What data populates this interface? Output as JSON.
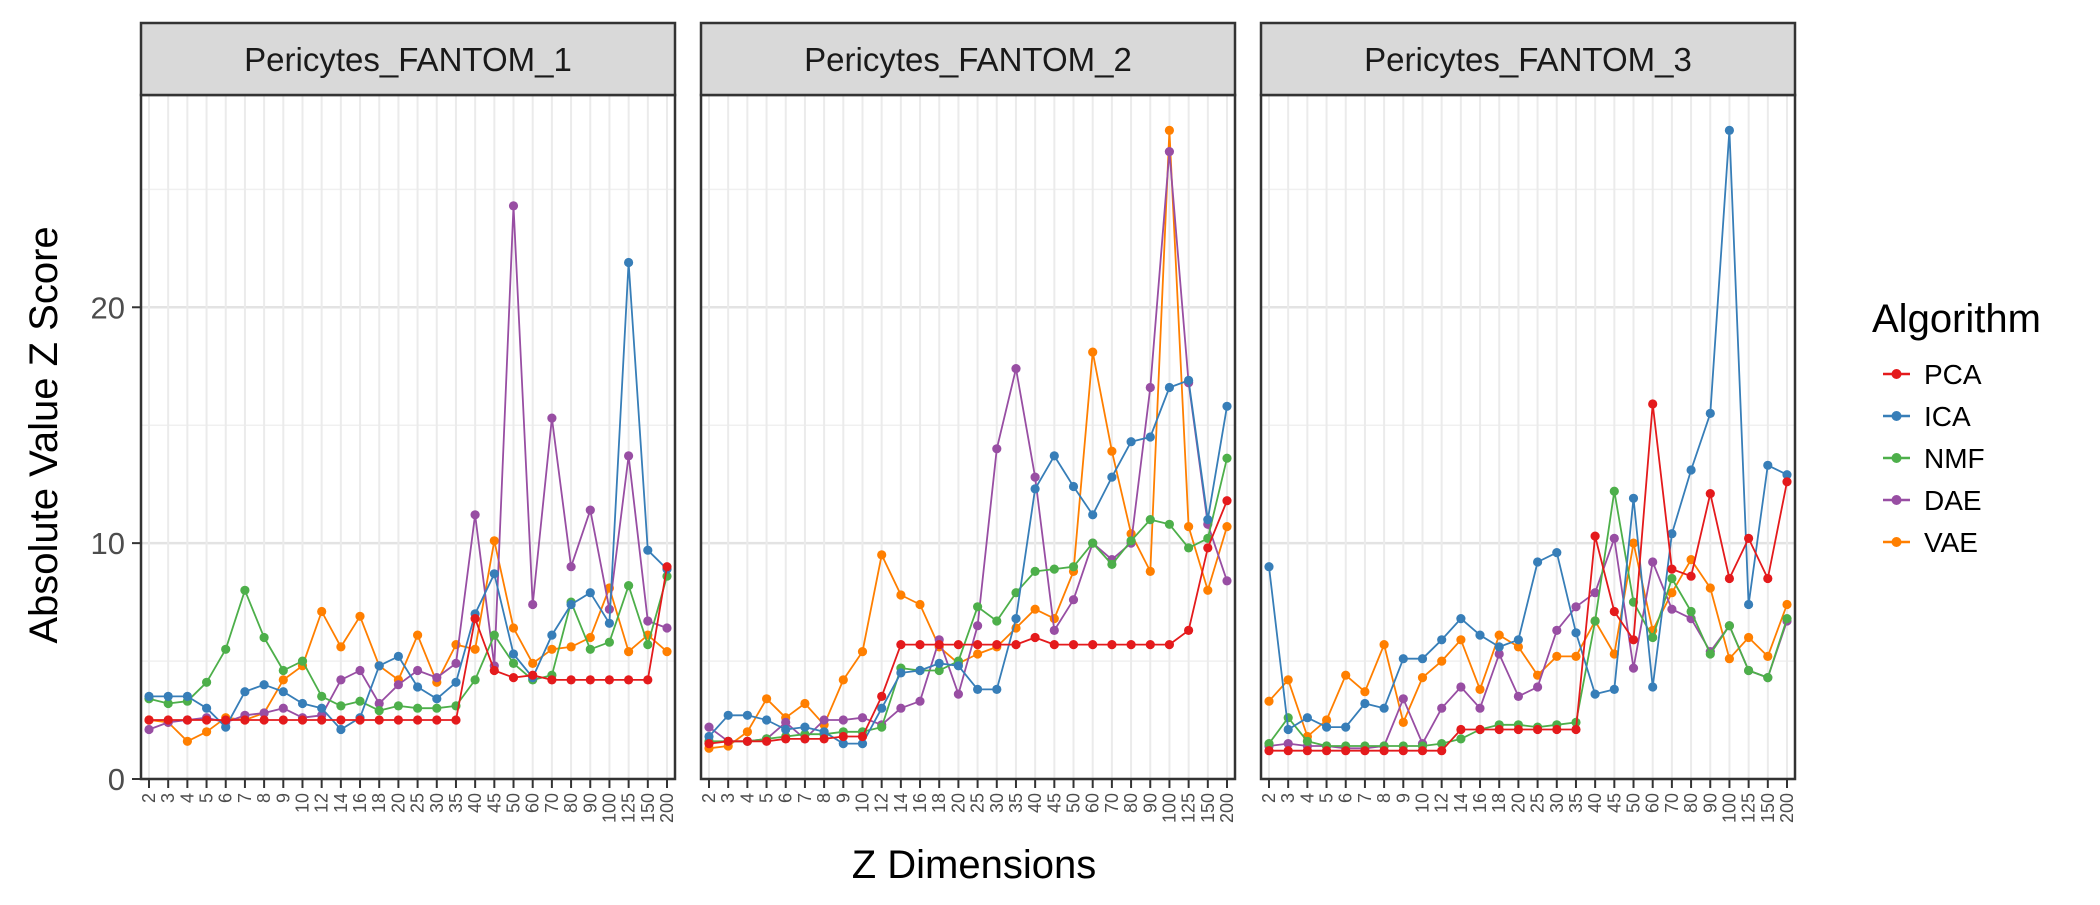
{
  "chart_data": {
    "type": "line",
    "xlabel": "Z Dimensions",
    "ylabel": "Absolute Value Z Score",
    "x": [
      "2",
      "3",
      "4",
      "5",
      "6",
      "7",
      "8",
      "9",
      "10",
      "12",
      "14",
      "16",
      "18",
      "20",
      "25",
      "30",
      "35",
      "40",
      "45",
      "50",
      "60",
      "70",
      "80",
      "90",
      "100",
      "125",
      "150",
      "200"
    ],
    "ylim": [
      0,
      29
    ],
    "yticks": [
      0,
      10,
      20
    ],
    "grid": true,
    "legend_title": "Algorithm",
    "legend_position": "right",
    "series_colors": {
      "PCA": "#E41A1C",
      "ICA": "#377EB8",
      "NMF": "#4DAF4A",
      "DAE": "#984EA3",
      "VAE": "#FF7F00"
    },
    "panels": [
      {
        "title": "Pericytes_FANTOM_1",
        "series": [
          {
            "name": "PCA",
            "values": [
              2.5,
              2.5,
              2.5,
              2.5,
              2.5,
              2.5,
              2.5,
              2.5,
              2.5,
              2.5,
              2.5,
              2.5,
              2.5,
              2.5,
              2.5,
              2.5,
              2.5,
              6.8,
              4.6,
              4.3,
              4.4,
              4.2,
              4.2,
              4.2,
              4.2,
              4.2,
              4.2,
              9.0
            ]
          },
          {
            "name": "ICA",
            "values": [
              3.5,
              3.5,
              3.5,
              3.0,
              2.2,
              3.7,
              4.0,
              3.7,
              3.2,
              3.0,
              2.1,
              2.6,
              4.8,
              5.2,
              3.9,
              3.4,
              4.1,
              7.0,
              8.7,
              5.3,
              4.3,
              6.1,
              7.4,
              7.9,
              6.6,
              21.9,
              9.7,
              8.9
            ]
          },
          {
            "name": "NMF",
            "values": [
              3.4,
              3.2,
              3.3,
              4.1,
              5.5,
              8.0,
              6.0,
              4.6,
              5.0,
              3.5,
              3.1,
              3.3,
              2.9,
              3.1,
              3.0,
              3.0,
              3.1,
              4.2,
              6.1,
              4.9,
              4.2,
              4.4,
              7.5,
              5.5,
              5.8,
              8.2,
              5.7,
              8.6
            ]
          },
          {
            "name": "DAE",
            "values": [
              2.1,
              2.4,
              2.5,
              2.6,
              2.4,
              2.7,
              2.8,
              3.0,
              2.6,
              2.7,
              4.2,
              4.6,
              3.2,
              4.0,
              4.6,
              4.3,
              4.9,
              11.2,
              4.8,
              24.3,
              7.4,
              15.3,
              9.0,
              11.4,
              7.2,
              13.7,
              6.7,
              6.4
            ]
          },
          {
            "name": "VAE",
            "values": [
              2.5,
              2.4,
              1.6,
              2.0,
              2.6,
              2.5,
              2.8,
              4.2,
              4.8,
              7.1,
              5.6,
              6.9,
              4.8,
              4.2,
              6.1,
              4.1,
              5.7,
              5.5,
              10.1,
              6.4,
              4.9,
              5.5,
              5.6,
              6.0,
              8.1,
              5.4,
              6.1,
              5.4
            ]
          }
        ]
      },
      {
        "title": "Pericytes_FANTOM_2",
        "series": [
          {
            "name": "PCA",
            "values": [
              1.5,
              1.6,
              1.6,
              1.6,
              1.7,
              1.7,
              1.7,
              1.8,
              1.8,
              3.5,
              5.7,
              5.7,
              5.7,
              5.7,
              5.7,
              5.7,
              5.7,
              6.0,
              5.7,
              5.7,
              5.7,
              5.7,
              5.7,
              5.7,
              5.7,
              6.3,
              9.8,
              11.8
            ]
          },
          {
            "name": "ICA",
            "values": [
              1.8,
              2.7,
              2.7,
              2.5,
              2.1,
              2.2,
              2.0,
              1.5,
              1.5,
              3.0,
              4.5,
              4.6,
              4.9,
              4.8,
              3.8,
              3.8,
              6.8,
              12.3,
              13.7,
              12.4,
              11.2,
              12.8,
              14.3,
              14.5,
              16.6,
              16.9,
              11.0,
              15.8
            ]
          },
          {
            "name": "NMF",
            "values": [
              1.6,
              1.6,
              1.6,
              1.7,
              1.8,
              1.9,
              1.9,
              2.0,
              2.0,
              2.2,
              4.7,
              4.6,
              4.6,
              5.0,
              7.3,
              6.7,
              7.9,
              8.8,
              8.9,
              9.0,
              10.0,
              9.1,
              10.1,
              11.0,
              10.8,
              9.8,
              10.2,
              13.6
            ]
          },
          {
            "name": "DAE",
            "values": [
              2.2,
              1.6,
              1.6,
              1.7,
              2.4,
              1.7,
              2.5,
              2.5,
              2.6,
              2.3,
              3.0,
              3.3,
              5.9,
              3.6,
              6.5,
              14.0,
              17.4,
              12.8,
              6.3,
              7.6,
              10.0,
              9.3,
              10.0,
              16.6,
              26.6,
              16.8,
              10.8,
              8.4
            ]
          },
          {
            "name": "VAE",
            "values": [
              1.3,
              1.4,
              2.0,
              3.4,
              2.6,
              3.2,
              2.3,
              4.2,
              5.4,
              9.5,
              7.8,
              7.4,
              5.6,
              4.9,
              5.3,
              5.6,
              6.4,
              7.2,
              6.8,
              8.8,
              18.1,
              13.9,
              10.4,
              8.8,
              27.5,
              10.7,
              8.0,
              10.7
            ]
          }
        ]
      },
      {
        "title": "Pericytes_FANTOM_3",
        "series": [
          {
            "name": "PCA",
            "values": [
              1.2,
              1.2,
              1.2,
              1.2,
              1.2,
              1.2,
              1.2,
              1.2,
              1.2,
              1.2,
              2.1,
              2.1,
              2.1,
              2.1,
              2.1,
              2.1,
              2.1,
              10.3,
              7.1,
              5.9,
              15.9,
              8.9,
              8.6,
              12.1,
              8.5,
              10.2,
              8.5,
              12.6
            ]
          },
          {
            "name": "ICA",
            "values": [
              9.0,
              2.1,
              2.6,
              2.2,
              2.2,
              3.2,
              3.0,
              5.1,
              5.1,
              5.9,
              6.8,
              6.1,
              5.6,
              5.9,
              9.2,
              9.6,
              6.2,
              3.6,
              3.8,
              11.9,
              3.9,
              10.4,
              13.1,
              15.5,
              27.5,
              7.4,
              13.3,
              12.9
            ]
          },
          {
            "name": "NMF",
            "values": [
              1.5,
              2.6,
              1.6,
              1.4,
              1.4,
              1.4,
              1.4,
              1.4,
              1.4,
              1.5,
              1.7,
              2.1,
              2.3,
              2.3,
              2.2,
              2.3,
              2.4,
              6.7,
              12.2,
              7.5,
              6.0,
              8.5,
              7.1,
              5.3,
              6.5,
              4.6,
              4.3,
              6.8
            ]
          },
          {
            "name": "DAE",
            "values": [
              1.4,
              1.5,
              1.4,
              1.4,
              1.3,
              1.3,
              1.4,
              3.4,
              1.5,
              3.0,
              3.9,
              3.0,
              5.3,
              3.5,
              3.9,
              6.3,
              7.3,
              7.9,
              10.2,
              4.7,
              9.2,
              7.2,
              6.8,
              5.4,
              6.5,
              4.6,
              4.3,
              6.7
            ]
          },
          {
            "name": "VAE",
            "values": [
              3.3,
              4.2,
              1.8,
              2.5,
              4.4,
              3.7,
              5.7,
              2.4,
              4.3,
              5.0,
              5.9,
              3.8,
              6.1,
              5.6,
              4.4,
              5.2,
              5.2,
              6.7,
              5.3,
              10.0,
              6.3,
              7.9,
              9.3,
              8.1,
              5.1,
              6.0,
              5.2,
              7.4
            ]
          }
        ]
      }
    ]
  }
}
